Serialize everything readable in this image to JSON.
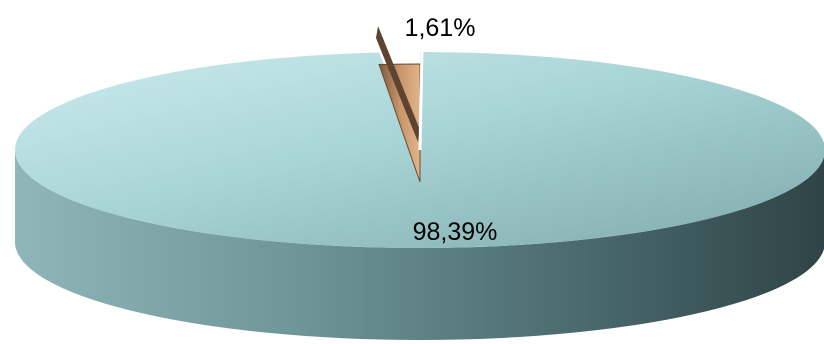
{
  "chart_data": {
    "type": "pie",
    "style": "3d",
    "slices": [
      {
        "label": "98,39%",
        "value": 98.39,
        "color": "#a8d8da"
      },
      {
        "label": "1,61%",
        "value": 1.61,
        "color": "#c8946a"
      }
    ]
  }
}
